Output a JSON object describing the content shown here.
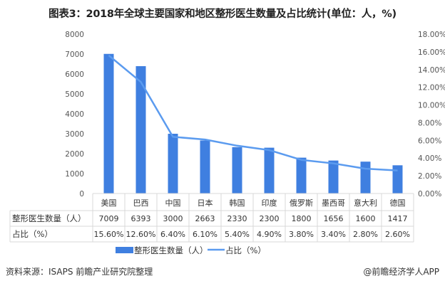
{
  "title": "图表3：2018年全球主要国家和地区整形医生数量及占比统计(单位：人，%)",
  "source": "资料来源：ISAPS 前瞻产业研究院整理",
  "credit": "@前瞻经济学人APP",
  "colors": {
    "bar": "#3f7fe0",
    "line": "#5b9bef",
    "grid": "#d9d9d9"
  },
  "chart_data": {
    "type": "bar+line",
    "categories": [
      "美国",
      "巴西",
      "中国",
      "日本",
      "韩国",
      "印度",
      "俄罗斯",
      "墨西哥",
      "意大利",
      "德国"
    ],
    "series": [
      {
        "name": "整形医生数量（人）",
        "type": "bar",
        "axis": "left",
        "values": [
          7009,
          6393,
          3000,
          2663,
          2330,
          2300,
          1800,
          1656,
          1600,
          1417
        ],
        "labels": [
          "7009",
          "6393",
          "3000",
          "2663",
          "2330",
          "2300",
          "1800",
          "1656",
          "1600",
          "1417"
        ]
      },
      {
        "name": "占比（%）",
        "type": "line",
        "axis": "right",
        "values": [
          15.6,
          12.6,
          6.4,
          6.1,
          5.4,
          4.9,
          3.8,
          3.4,
          2.8,
          2.6
        ],
        "labels": [
          "15.60%",
          "12.60%",
          "6.40%",
          "6.10%",
          "5.40%",
          "4.90%",
          "3.80%",
          "3.40%",
          "2.80%",
          "2.60%"
        ]
      }
    ],
    "ylim_left": [
      0,
      8000
    ],
    "ylim_right": [
      0,
      18
    ],
    "left_ticks": [
      "0",
      "1000",
      "2000",
      "3000",
      "4000",
      "5000",
      "6000",
      "7000",
      "8000"
    ],
    "right_ticks": [
      "0.00%",
      "2.00%",
      "4.00%",
      "6.00%",
      "8.00%",
      "10.00%",
      "12.00%",
      "14.00%",
      "16.00%",
      "18.00%"
    ],
    "legend_position": "bottom",
    "grid": false,
    "data_table": true
  }
}
